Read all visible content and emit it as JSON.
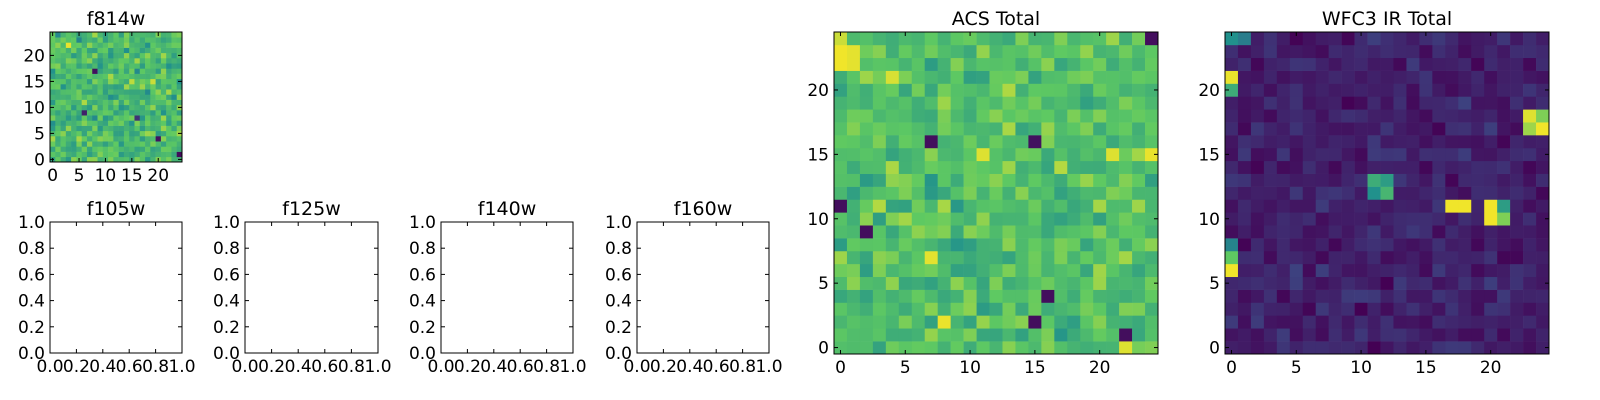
{
  "figure": {
    "colormap": "viridis",
    "colormap_stops": [
      "#440154",
      "#3b528b",
      "#21918c",
      "#5ec962",
      "#fde725"
    ]
  },
  "chart_data": [
    {
      "type": "heatmap",
      "title": "f814w",
      "grid_size": 25,
      "xlim": [
        -0.5,
        24.5
      ],
      "ylim": [
        -0.5,
        24.5
      ],
      "xticks": [
        0,
        5,
        10,
        15,
        20
      ],
      "yticks": [
        0,
        5,
        10,
        15,
        20
      ],
      "value_range": [
        0,
        1
      ],
      "noise": {
        "seed": 814,
        "mean": 0.68,
        "spread": 0.26
      },
      "notable_cells": [
        {
          "x": 3,
          "y": 22,
          "v": 0.97
        },
        {
          "x": 8,
          "y": 17,
          "v": 0.05
        },
        {
          "x": 20,
          "y": 4,
          "v": 0.05
        },
        {
          "x": 24,
          "y": 1,
          "v": 0.03
        },
        {
          "x": 6,
          "y": 9,
          "v": 0.1
        },
        {
          "x": 16,
          "y": 8,
          "v": 0.15
        }
      ]
    },
    {
      "type": "heatmap",
      "title": "f105w",
      "empty": true,
      "xlim": [
        0.0,
        1.0
      ],
      "ylim": [
        0.0,
        1.0
      ],
      "xticks": [
        "0.0",
        "0.2",
        "0.4",
        "0.6",
        "0.8",
        "1.0"
      ],
      "yticks": [
        "0.0",
        "0.2",
        "0.4",
        "0.6",
        "0.8",
        "1.0"
      ]
    },
    {
      "type": "heatmap",
      "title": "f125w",
      "empty": true,
      "xlim": [
        0.0,
        1.0
      ],
      "ylim": [
        0.0,
        1.0
      ],
      "xticks": [
        "0.0",
        "0.2",
        "0.4",
        "0.6",
        "0.8",
        "1.0"
      ],
      "yticks": [
        "0.0",
        "0.2",
        "0.4",
        "0.6",
        "0.8",
        "1.0"
      ]
    },
    {
      "type": "heatmap",
      "title": "f140w",
      "empty": true,
      "xlim": [
        0.0,
        1.0
      ],
      "ylim": [
        0.0,
        1.0
      ],
      "xticks": [
        "0.0",
        "0.2",
        "0.4",
        "0.6",
        "0.8",
        "1.0"
      ],
      "yticks": [
        "0.0",
        "0.2",
        "0.4",
        "0.6",
        "0.8",
        "1.0"
      ]
    },
    {
      "type": "heatmap",
      "title": "f160w",
      "empty": true,
      "xlim": [
        0.0,
        1.0
      ],
      "ylim": [
        0.0,
        1.0
      ],
      "xticks": [
        "0.0",
        "0.2",
        "0.4",
        "0.6",
        "0.8",
        "1.0"
      ],
      "yticks": [
        "0.0",
        "0.2",
        "0.4",
        "0.6",
        "0.8",
        "1.0"
      ]
    },
    {
      "type": "heatmap",
      "title": "ACS Total",
      "grid_size": 25,
      "xlim": [
        -0.5,
        24.5
      ],
      "ylim": [
        -0.5,
        24.5
      ],
      "xticks": [
        0,
        5,
        10,
        15,
        20
      ],
      "yticks": [
        0,
        5,
        10,
        15,
        20
      ],
      "value_range": [
        0,
        1
      ],
      "noise": {
        "seed": 2207,
        "mean": 0.7,
        "spread": 0.22
      },
      "notable_cells": [
        {
          "x": 0,
          "y": 23,
          "v": 0.98
        },
        {
          "x": 0,
          "y": 22,
          "v": 0.98
        },
        {
          "x": 1,
          "y": 23,
          "v": 0.96
        },
        {
          "x": 1,
          "y": 22,
          "v": 0.96
        },
        {
          "x": 0,
          "y": 24,
          "v": 0.92
        },
        {
          "x": 24,
          "y": 24,
          "v": 0.04
        },
        {
          "x": 7,
          "y": 16,
          "v": 0.04
        },
        {
          "x": 15,
          "y": 16,
          "v": 0.05
        },
        {
          "x": 0,
          "y": 11,
          "v": 0.04
        },
        {
          "x": 2,
          "y": 9,
          "v": 0.04
        },
        {
          "x": 16,
          "y": 4,
          "v": 0.04
        },
        {
          "x": 15,
          "y": 2,
          "v": 0.04
        },
        {
          "x": 22,
          "y": 1,
          "v": 0.04
        },
        {
          "x": 8,
          "y": 2,
          "v": 0.97
        },
        {
          "x": 7,
          "y": 7,
          "v": 0.96
        },
        {
          "x": 11,
          "y": 15,
          "v": 0.95
        },
        {
          "x": 24,
          "y": 15,
          "v": 0.97
        },
        {
          "x": 21,
          "y": 15,
          "v": 0.95
        },
        {
          "x": 22,
          "y": 0,
          "v": 0.95
        },
        {
          "x": 4,
          "y": 21,
          "v": 0.94
        }
      ]
    },
    {
      "type": "heatmap",
      "title": "WFC3 IR Total",
      "grid_size": 25,
      "xlim": [
        -0.5,
        24.5
      ],
      "ylim": [
        -0.5,
        24.5
      ],
      "xticks": [
        0,
        5,
        10,
        15,
        20
      ],
      "yticks": [
        0,
        5,
        10,
        15,
        20
      ],
      "value_range": [
        0,
        1
      ],
      "noise": {
        "seed": 3113,
        "mean": 0.1,
        "spread": 0.12
      },
      "notable_cells": [
        {
          "x": 0,
          "y": 21,
          "v": 0.97
        },
        {
          "x": 0,
          "y": 20,
          "v": 0.62
        },
        {
          "x": 0,
          "y": 7,
          "v": 0.75
        },
        {
          "x": 0,
          "y": 6,
          "v": 0.98
        },
        {
          "x": 0,
          "y": 8,
          "v": 0.45
        },
        {
          "x": 11,
          "y": 13,
          "v": 0.62
        },
        {
          "x": 12,
          "y": 13,
          "v": 0.55
        },
        {
          "x": 11,
          "y": 12,
          "v": 0.5
        },
        {
          "x": 12,
          "y": 12,
          "v": 0.66
        },
        {
          "x": 17,
          "y": 11,
          "v": 0.98
        },
        {
          "x": 18,
          "y": 11,
          "v": 0.98
        },
        {
          "x": 20,
          "y": 11,
          "v": 0.98
        },
        {
          "x": 20,
          "y": 10,
          "v": 0.98
        },
        {
          "x": 21,
          "y": 10,
          "v": 0.8
        },
        {
          "x": 21,
          "y": 11,
          "v": 0.55
        },
        {
          "x": 23,
          "y": 18,
          "v": 0.95
        },
        {
          "x": 24,
          "y": 18,
          "v": 0.8
        },
        {
          "x": 24,
          "y": 17,
          "v": 0.98
        },
        {
          "x": 23,
          "y": 17,
          "v": 0.85
        },
        {
          "x": 0,
          "y": 24,
          "v": 0.5
        },
        {
          "x": 1,
          "y": 24,
          "v": 0.42
        }
      ]
    }
  ]
}
